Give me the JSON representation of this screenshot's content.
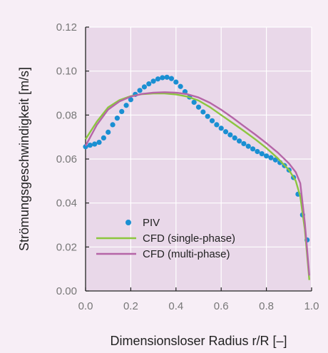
{
  "chart_data": {
    "type": "line",
    "xlabel": "Dimensionsloser Radius r/R [–]",
    "ylabel": "Strömungsgeschwindigkeit [m/s]",
    "xlim": [
      0,
      1
    ],
    "ylim": [
      0,
      0.12
    ],
    "x_ticks": [
      "0.0",
      "0.2",
      "0.4",
      "0.6",
      "0.8",
      "1.0"
    ],
    "y_ticks": [
      "0.00",
      "0.02",
      "0.04",
      "0.06",
      "0.08",
      "0.10",
      "0.12"
    ],
    "grid": true,
    "legend_position": "lower-left",
    "colors": {
      "plot_bg": "#e9d8e9",
      "page_bg": "#f7eef6",
      "grid": "#ffffff",
      "axis": "#222222"
    },
    "series": [
      {
        "name": "PIV",
        "kind": "scatter",
        "color": "#1a8fd2",
        "points": [
          [
            0.0,
            0.0656
          ],
          [
            0.02,
            0.0663
          ],
          [
            0.04,
            0.0668
          ],
          [
            0.06,
            0.0676
          ],
          [
            0.08,
            0.0696
          ],
          [
            0.1,
            0.0722
          ],
          [
            0.12,
            0.0756
          ],
          [
            0.14,
            0.0786
          ],
          [
            0.16,
            0.0816
          ],
          [
            0.18,
            0.0844
          ],
          [
            0.2,
            0.087
          ],
          [
            0.22,
            0.0894
          ],
          [
            0.24,
            0.0912
          ],
          [
            0.26,
            0.0928
          ],
          [
            0.28,
            0.0942
          ],
          [
            0.3,
            0.0954
          ],
          [
            0.32,
            0.0964
          ],
          [
            0.34,
            0.097
          ],
          [
            0.36,
            0.0972
          ],
          [
            0.38,
            0.0966
          ],
          [
            0.4,
            0.095
          ],
          [
            0.42,
            0.093
          ],
          [
            0.44,
            0.0906
          ],
          [
            0.46,
            0.0882
          ],
          [
            0.48,
            0.0858
          ],
          [
            0.5,
            0.0836
          ],
          [
            0.52,
            0.0814
          ],
          [
            0.54,
            0.0794
          ],
          [
            0.56,
            0.0774
          ],
          [
            0.58,
            0.0756
          ],
          [
            0.6,
            0.074
          ],
          [
            0.62,
            0.0724
          ],
          [
            0.64,
            0.071
          ],
          [
            0.66,
            0.0696
          ],
          [
            0.68,
            0.0682
          ],
          [
            0.7,
            0.067
          ],
          [
            0.72,
            0.0658
          ],
          [
            0.74,
            0.0646
          ],
          [
            0.76,
            0.0634
          ],
          [
            0.78,
            0.0624
          ],
          [
            0.8,
            0.0614
          ],
          [
            0.82,
            0.0606
          ],
          [
            0.84,
            0.0596
          ],
          [
            0.86,
            0.0584
          ],
          [
            0.88,
            0.057
          ],
          [
            0.9,
            0.055
          ],
          [
            0.92,
            0.0516
          ],
          [
            0.94,
            0.044
          ],
          [
            0.96,
            0.0346
          ],
          [
            0.98,
            0.0232
          ]
        ]
      },
      {
        "name": "CFD (single-phase)",
        "kind": "line",
        "color": "#8cc63f",
        "points": [
          [
            0.0,
            0.069
          ],
          [
            0.05,
            0.077
          ],
          [
            0.1,
            0.0835
          ],
          [
            0.15,
            0.0868
          ],
          [
            0.2,
            0.0886
          ],
          [
            0.25,
            0.0895
          ],
          [
            0.3,
            0.0898
          ],
          [
            0.35,
            0.0898
          ],
          [
            0.4,
            0.0894
          ],
          [
            0.45,
            0.0884
          ],
          [
            0.5,
            0.0866
          ],
          [
            0.55,
            0.0836
          ],
          [
            0.6,
            0.08
          ],
          [
            0.65,
            0.0764
          ],
          [
            0.7,
            0.0728
          ],
          [
            0.75,
            0.069
          ],
          [
            0.8,
            0.065
          ],
          [
            0.85,
            0.0604
          ],
          [
            0.9,
            0.055
          ],
          [
            0.93,
            0.05
          ],
          [
            0.95,
            0.043
          ],
          [
            0.97,
            0.028
          ],
          [
            0.99,
            0.005
          ]
        ]
      },
      {
        "name": "CFD (multi-phase)",
        "kind": "line",
        "color": "#b565a7",
        "points": [
          [
            0.0,
            0.066
          ],
          [
            0.05,
            0.0755
          ],
          [
            0.1,
            0.0825
          ],
          [
            0.15,
            0.0862
          ],
          [
            0.2,
            0.0884
          ],
          [
            0.25,
            0.0896
          ],
          [
            0.3,
            0.0902
          ],
          [
            0.35,
            0.0904
          ],
          [
            0.4,
            0.0902
          ],
          [
            0.45,
            0.0895
          ],
          [
            0.5,
            0.088
          ],
          [
            0.55,
            0.0856
          ],
          [
            0.6,
            0.0824
          ],
          [
            0.65,
            0.0788
          ],
          [
            0.7,
            0.075
          ],
          [
            0.75,
            0.0712
          ],
          [
            0.8,
            0.0672
          ],
          [
            0.85,
            0.063
          ],
          [
            0.9,
            0.058
          ],
          [
            0.93,
            0.054
          ],
          [
            0.95,
            0.049
          ],
          [
            0.97,
            0.031
          ],
          [
            0.99,
            0.007
          ]
        ]
      }
    ]
  }
}
